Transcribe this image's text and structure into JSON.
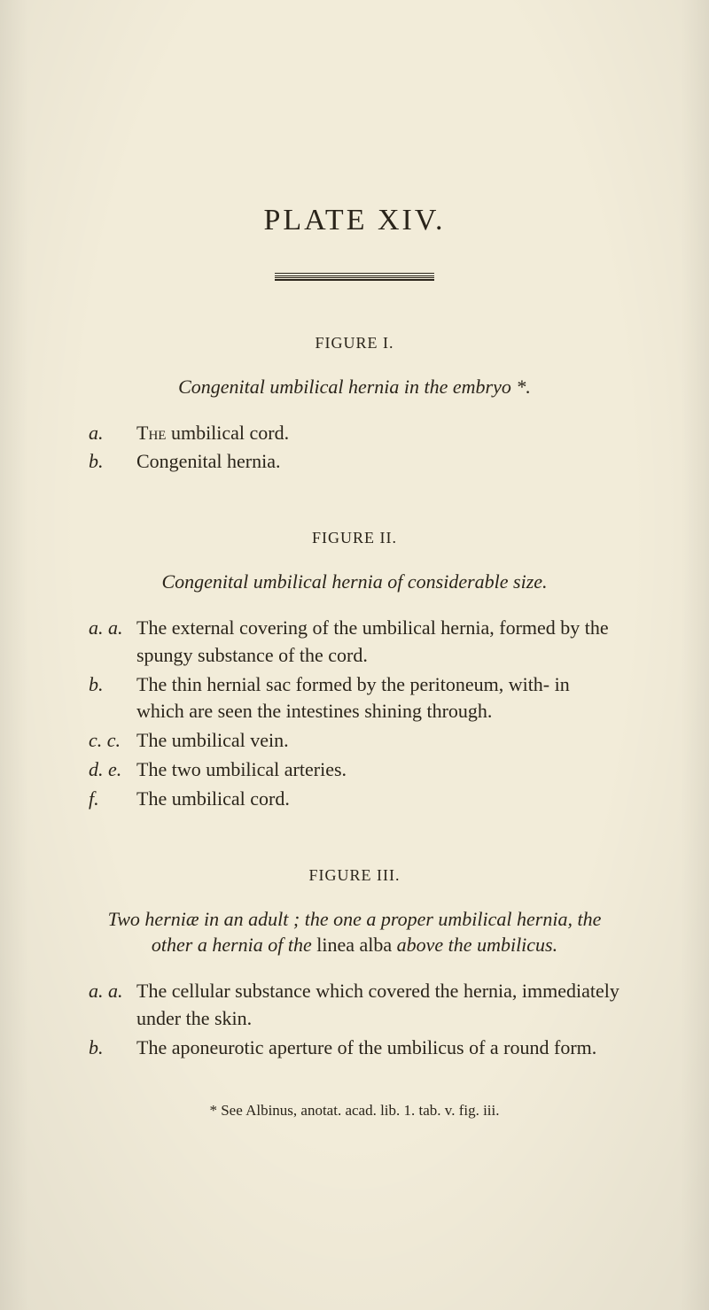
{
  "plate_title": "PLATE  XIV.",
  "figures": [
    {
      "heading": "FIGURE I.",
      "caption_html": "Congenital umbilical hernia in the embryo *.",
      "entries": [
        {
          "label": "a.",
          "text_html": "T<span class='sc'>he</span> umbilical cord."
        },
        {
          "label": "b.",
          "text_html": "Congenital hernia."
        }
      ]
    },
    {
      "heading": "FIGURE II.",
      "caption_html": "Congenital umbilical hernia of considerable size.",
      "entries": [
        {
          "label": "a. a.",
          "text_html": "The external covering of the umbilical hernia, formed by the spungy substance of the cord."
        },
        {
          "label": "b.",
          "text_html": "The thin hernial sac formed by the peritoneum, with- in which are seen the intestines shining through."
        },
        {
          "label": "c. c.",
          "text_html": "The umbilical vein."
        },
        {
          "label": "d. e.",
          "text_html": "The two umbilical arteries."
        },
        {
          "label": "f.",
          "text_html": "The umbilical cord."
        }
      ]
    },
    {
      "heading": "FIGURE III.",
      "caption_html": "Two herniæ in an adult ; the one a proper umbilical hernia, the other a hernia of the <span class='plain'>linea alba</span> above the umbilicus.",
      "entries": [
        {
          "label": "a. a.",
          "text_html": "The cellular substance which covered the hernia, immediately under the skin."
        },
        {
          "label": "b.",
          "text_html": "The aponeurotic aperture of the umbilicus of a round form."
        }
      ]
    }
  ],
  "footnote": "* See Albinus, anotat. acad. lib. 1. tab. v. fig. iii."
}
